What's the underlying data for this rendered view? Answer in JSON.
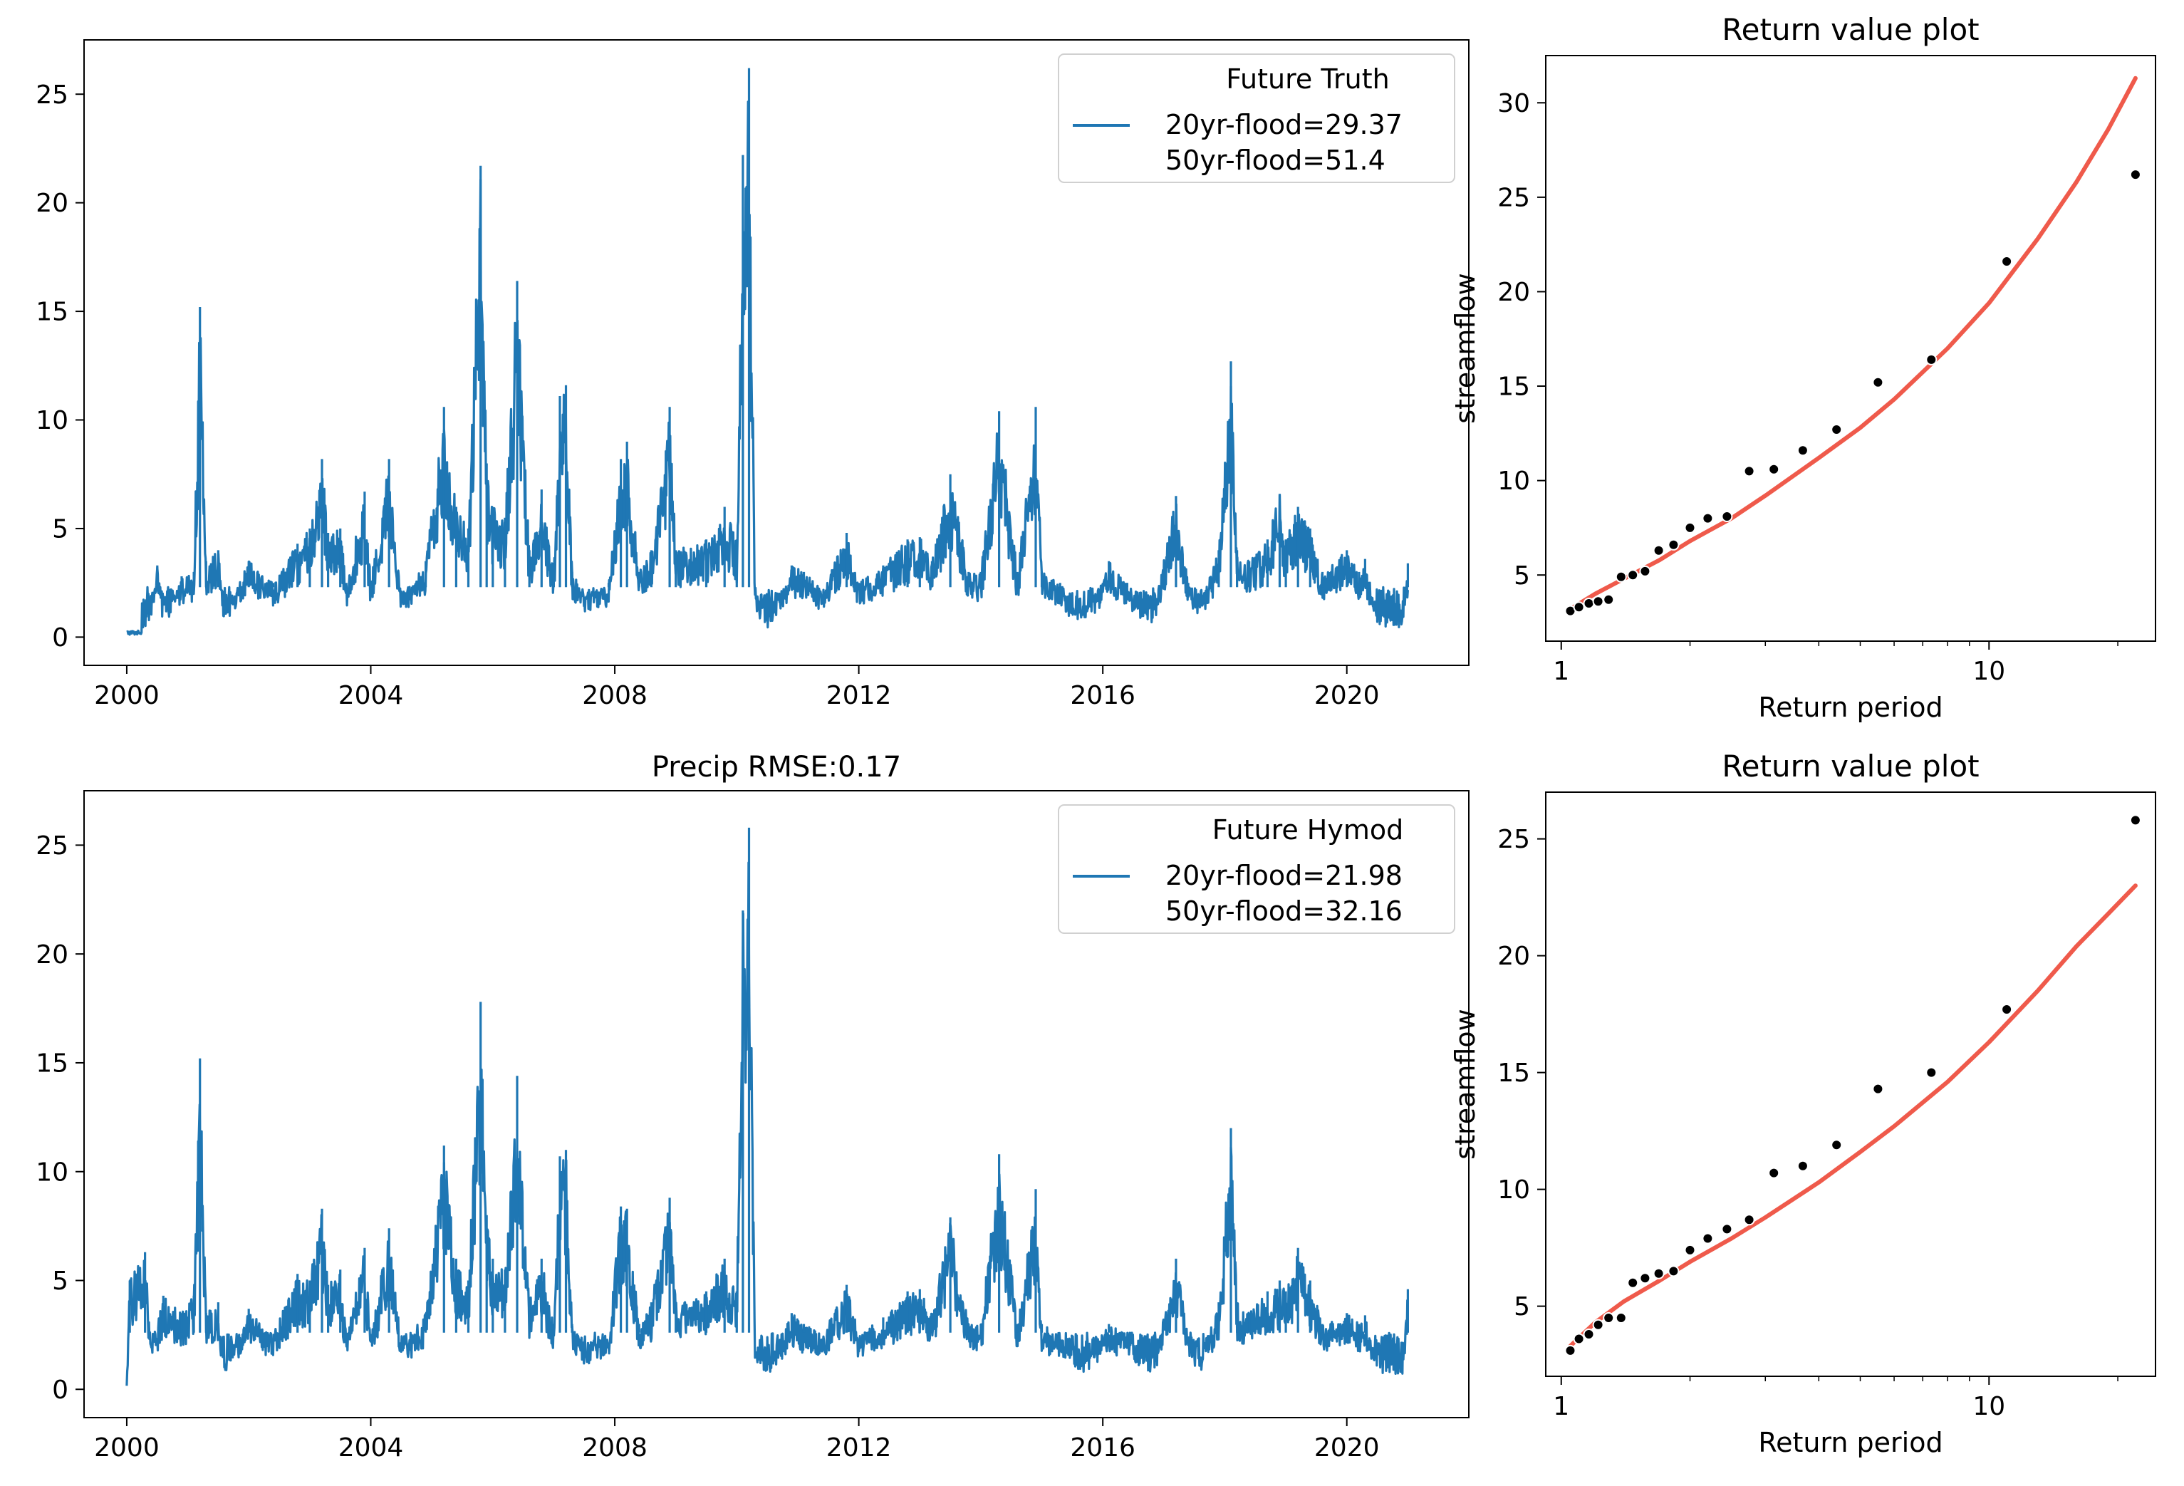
{
  "chart_data": [
    {
      "type": "line",
      "panel": "top-left",
      "title": "",
      "xlabel": "",
      "ylabel": "",
      "xlim": [
        1999.3,
        2022.0
      ],
      "ylim": [
        -1.3,
        27.5
      ],
      "xticks": [
        2000,
        2004,
        2008,
        2012,
        2016,
        2020
      ],
      "xtick_labels": [
        "2000",
        "2004",
        "2008",
        "2012",
        "2016",
        "2020"
      ],
      "yticks": [
        0,
        5,
        10,
        15,
        20,
        25
      ],
      "ytick_labels": [
        "0",
        "5",
        "10",
        "15",
        "20",
        "25"
      ],
      "grid": false,
      "legend": {
        "placement": "upper right",
        "title": "Future Truth",
        "label_lines": [
          "20yr-flood=29.37",
          "50yr-flood=51.4"
        ]
      },
      "series": [
        {
          "color": "#1f77b4",
          "baseline_range": [
            0.4,
            2.3
          ],
          "x": [
            2000.0,
            2000.3,
            2000.5,
            2000.6,
            2000.9,
            2001.1,
            2001.2,
            2001.3,
            2001.5,
            2001.6,
            2002.0,
            2002.4,
            2002.8,
            2003.0,
            2003.2,
            2003.3,
            2003.5,
            2003.6,
            2003.9,
            2004.0,
            2004.3,
            2004.5,
            2004.9,
            2005.2,
            2005.4,
            2005.6,
            2005.8,
            2005.9,
            2006.0,
            2006.2,
            2006.4,
            2006.6,
            2006.8,
            2007.0,
            2007.1,
            2007.2,
            2007.3,
            2007.5,
            2007.9,
            2008.1,
            2008.2,
            2008.4,
            2008.6,
            2008.9,
            2009.0,
            2009.5,
            2009.8,
            2010.0,
            2010.1,
            2010.2,
            2010.3,
            2010.5,
            2010.9,
            2011.1,
            2011.4,
            2011.8,
            2012.0,
            2012.4,
            2012.8,
            2013.0,
            2013.2,
            2013.5,
            2013.8,
            2014.0,
            2014.3,
            2014.6,
            2014.9,
            2015.0,
            2015.3,
            2015.6,
            2016.0,
            2016.1,
            2016.4,
            2016.8,
            2017.2,
            2017.4,
            2017.6,
            2017.9,
            2018.1,
            2018.2,
            2018.4,
            2018.7,
            2018.9,
            2019.0,
            2019.2,
            2019.4,
            2019.6,
            2020.0,
            2020.2,
            2020.3,
            2020.5,
            2020.9,
            2021.0
          ],
          "y": [
            0.1,
            0.2,
            3.3,
            1.0,
            2.8,
            3.0,
            15.2,
            3.5,
            4.0,
            1.0,
            3.5,
            2.5,
            4.3,
            5.0,
            8.2,
            4.8,
            5.0,
            2.5,
            6.7,
            2.5,
            8.2,
            2.0,
            3.5,
            10.6,
            6.0,
            5.0,
            21.7,
            8.0,
            6.0,
            5.5,
            16.4,
            4.0,
            6.8,
            3.0,
            11.1,
            11.6,
            3.0,
            2.0,
            2.5,
            8.2,
            9.0,
            3.0,
            4.0,
            10.6,
            4.0,
            4.5,
            6.0,
            4.5,
            22.2,
            26.2,
            2.0,
            0.5,
            3.3,
            3.0,
            2.2,
            4.8,
            2.5,
            3.3,
            4.5,
            4.6,
            3.5,
            7.5,
            3.0,
            3.0,
            10.4,
            3.0,
            10.6,
            3.0,
            2.5,
            1.0,
            2.5,
            3.5,
            2.5,
            0.8,
            6.5,
            2.5,
            1.5,
            4.0,
            12.7,
            4.0,
            3.5,
            4.5,
            6.6,
            4.5,
            6.0,
            5.0,
            3.0,
            4.0,
            3.0,
            3.6,
            1.0,
            0.5,
            3.4
          ]
        }
      ]
    },
    {
      "type": "scatter",
      "panel": "top-right",
      "title": "Return value plot",
      "xlabel": "Return period",
      "ylabel": "streamflow",
      "xscale": "log",
      "xlim": [
        0.92,
        24.5
      ],
      "ylim": [
        1.5,
        32.5
      ],
      "xticks": [
        1,
        10
      ],
      "xtick_labels": [
        "1",
        "10"
      ],
      "yticks": [
        5,
        10,
        15,
        20,
        25,
        30
      ],
      "ytick_labels": [
        "5",
        "10",
        "15",
        "20",
        "25",
        "30"
      ],
      "grid": false,
      "points": {
        "color": "#000000",
        "x": [
          1.05,
          1.1,
          1.16,
          1.22,
          1.29,
          1.38,
          1.47,
          1.57,
          1.69,
          1.83,
          2.0,
          2.2,
          2.44,
          2.75,
          3.14,
          3.67,
          4.4,
          5.5,
          7.33,
          11.0,
          22.0
        ],
        "y": [
          3.1,
          3.3,
          3.5,
          3.6,
          3.7,
          4.9,
          5.0,
          5.2,
          6.3,
          6.6,
          7.5,
          8.0,
          8.1,
          10.5,
          10.6,
          11.6,
          12.7,
          15.2,
          16.4,
          21.6,
          26.2
        ]
      },
      "fit": {
        "color": "#ef5a4b",
        "x": [
          1.05,
          1.2,
          1.4,
          1.7,
          2.0,
          2.5,
          3.0,
          4.0,
          5.0,
          6.0,
          8.0,
          10.0,
          13.0,
          16.0,
          19.0,
          22.0
        ],
        "y": [
          3.2,
          4.0,
          4.8,
          5.8,
          6.8,
          8.0,
          9.2,
          11.2,
          12.8,
          14.3,
          17.0,
          19.4,
          22.8,
          25.8,
          28.6,
          31.3
        ]
      }
    },
    {
      "type": "line",
      "panel": "bottom-left",
      "title": "Precip RMSE:0.17",
      "xlabel": "",
      "ylabel": "",
      "xlim": [
        1999.3,
        2022.0
      ],
      "ylim": [
        -1.3,
        27.5
      ],
      "xticks": [
        2000,
        2004,
        2008,
        2012,
        2016,
        2020
      ],
      "xtick_labels": [
        "2000",
        "2004",
        "2008",
        "2012",
        "2016",
        "2020"
      ],
      "yticks": [
        0,
        5,
        10,
        15,
        20,
        25
      ],
      "ytick_labels": [
        "0",
        "5",
        "10",
        "15",
        "20",
        "25"
      ],
      "grid": false,
      "legend": {
        "placement": "upper right",
        "title": "Future Hymod",
        "label_lines": [
          "20yr-flood=21.98",
          "50yr-flood=32.16"
        ]
      },
      "series": [
        {
          "color": "#1f77b4",
          "baseline_range": [
            0.6,
            2.6
          ],
          "x": [
            2000.0,
            2000.05,
            2000.3,
            2000.4,
            2000.6,
            2000.9,
            2001.1,
            2001.2,
            2001.3,
            2001.5,
            2001.6,
            2002.0,
            2002.4,
            2002.8,
            2003.0,
            2003.2,
            2003.3,
            2003.5,
            2003.6,
            2003.9,
            2004.0,
            2004.3,
            2004.5,
            2004.9,
            2005.2,
            2005.4,
            2005.6,
            2005.8,
            2005.9,
            2006.0,
            2006.2,
            2006.4,
            2006.6,
            2006.8,
            2007.0,
            2007.1,
            2007.2,
            2007.3,
            2007.5,
            2007.9,
            2008.1,
            2008.2,
            2008.4,
            2008.6,
            2008.9,
            2009.0,
            2009.5,
            2009.8,
            2010.0,
            2010.1,
            2010.2,
            2010.3,
            2010.5,
            2010.9,
            2011.1,
            2011.4,
            2011.8,
            2012.0,
            2012.4,
            2012.8,
            2013.0,
            2013.2,
            2013.5,
            2013.8,
            2014.0,
            2014.3,
            2014.6,
            2014.9,
            2015.0,
            2015.3,
            2015.6,
            2016.0,
            2016.1,
            2016.4,
            2016.8,
            2017.2,
            2017.4,
            2017.6,
            2017.9,
            2018.1,
            2018.2,
            2018.4,
            2018.7,
            2018.9,
            2019.0,
            2019.2,
            2019.4,
            2019.6,
            2020.0,
            2020.2,
            2020.3,
            2020.5,
            2020.9,
            2021.0
          ],
          "y": [
            0.1,
            5.0,
            6.3,
            2.0,
            4.3,
            3.5,
            4.3,
            15.2,
            3.5,
            4.0,
            1.0,
            3.7,
            2.5,
            5.3,
            5.0,
            8.3,
            4.8,
            5.5,
            2.5,
            6.5,
            2.5,
            7.4,
            2.0,
            3.5,
            11.2,
            6.0,
            5.0,
            17.8,
            8.0,
            6.0,
            5.5,
            14.4,
            4.0,
            6.0,
            3.0,
            10.7,
            11.0,
            3.0,
            2.0,
            2.5,
            8.4,
            8.3,
            3.0,
            4.0,
            8.8,
            4.0,
            4.5,
            6.0,
            4.5,
            22.0,
            25.8,
            2.0,
            1.0,
            3.5,
            3.0,
            2.5,
            4.8,
            2.5,
            3.3,
            4.5,
            4.6,
            3.5,
            7.9,
            3.0,
            3.0,
            10.8,
            3.0,
            9.2,
            3.0,
            2.5,
            1.0,
            2.5,
            3.0,
            2.5,
            0.8,
            6.0,
            2.5,
            1.5,
            4.0,
            12.0,
            4.0,
            3.5,
            4.5,
            5.0,
            4.5,
            6.5,
            5.0,
            3.0,
            3.5,
            3.0,
            3.4,
            1.0,
            0.5,
            4.6
          ]
        }
      ]
    },
    {
      "type": "scatter",
      "panel": "bottom-right",
      "title": "Return value plot",
      "xlabel": "Return period",
      "ylabel": "streamflow",
      "xscale": "log",
      "xlim": [
        0.92,
        24.5
      ],
      "ylim": [
        2.0,
        27.0
      ],
      "xticks": [
        1,
        10
      ],
      "xtick_labels": [
        "1",
        "10"
      ],
      "yticks": [
        5,
        10,
        15,
        20,
        25
      ],
      "ytick_labels": [
        "5",
        "10",
        "15",
        "20",
        "25"
      ],
      "grid": false,
      "points": {
        "color": "#000000",
        "x": [
          1.05,
          1.1,
          1.16,
          1.22,
          1.29,
          1.38,
          1.47,
          1.57,
          1.69,
          1.83,
          2.0,
          2.2,
          2.44,
          2.75,
          3.14,
          3.67,
          4.4,
          5.5,
          7.33,
          11.0,
          22.0
        ],
        "y": [
          3.1,
          3.6,
          3.8,
          4.2,
          4.5,
          4.5,
          6.0,
          6.2,
          6.4,
          6.5,
          7.4,
          7.9,
          8.3,
          8.7,
          10.7,
          11.0,
          11.9,
          14.3,
          15.0,
          17.7,
          25.8
        ]
      },
      "fit": {
        "color": "#ef5a4b",
        "x": [
          1.05,
          1.2,
          1.4,
          1.7,
          2.0,
          2.5,
          3.0,
          4.0,
          5.0,
          6.0,
          8.0,
          10.0,
          13.0,
          16.0,
          19.0,
          22.0
        ],
        "y": [
          3.3,
          4.3,
          5.2,
          6.1,
          6.9,
          7.9,
          8.8,
          10.3,
          11.6,
          12.7,
          14.6,
          16.3,
          18.5,
          20.4,
          21.8,
          23.0
        ]
      }
    }
  ]
}
